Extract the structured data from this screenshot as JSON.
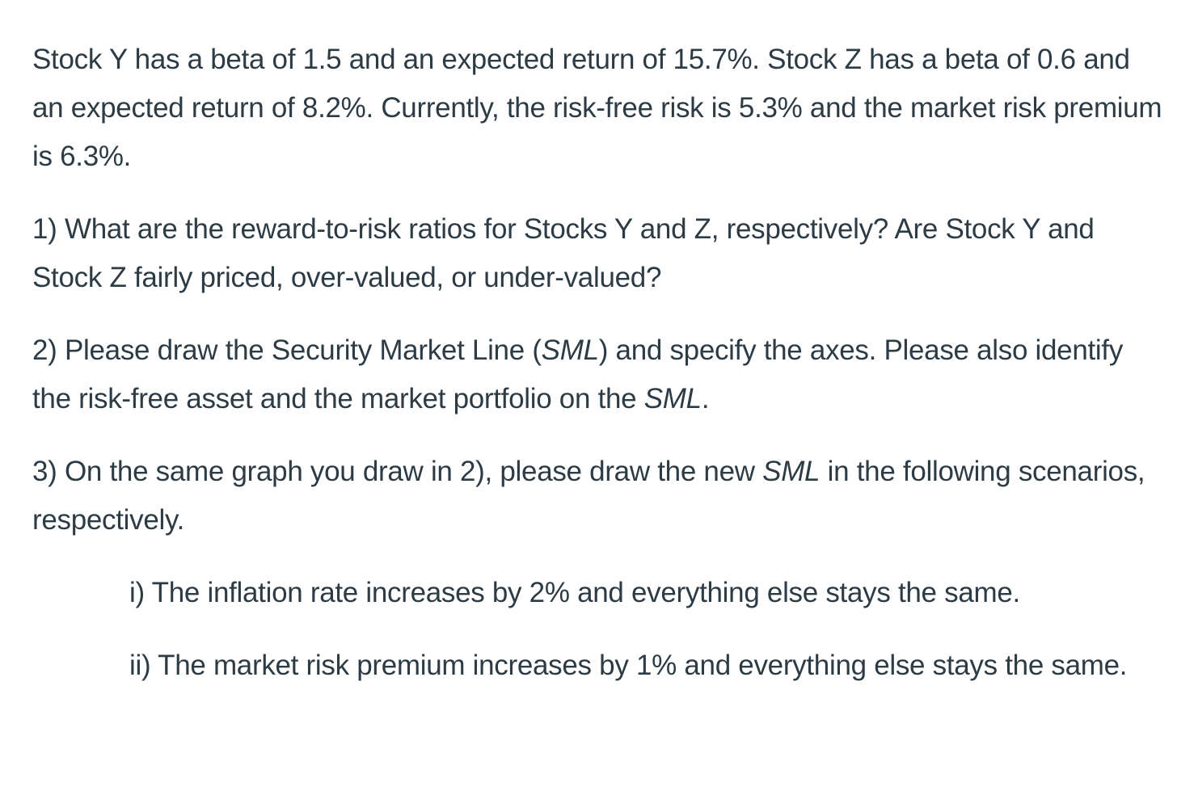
{
  "intro": {
    "text": "Stock Y has a beta of 1.5 and an expected return of 15.7%. Stock Z has a beta of 0.6 and an expected return of 8.2%. Currently, the risk-free risk is 5.3% and the market risk premium is 6.3%."
  },
  "questions": [
    {
      "number": "1)",
      "text": "What are the reward-to-risk ratios for Stocks Y and Z, respectively? Are Stock Y and Stock Z fairly priced, over-valued, or under-valued?"
    },
    {
      "number": "2)",
      "text_before": "Please draw the Security Market Line (",
      "emph1": "SML",
      "text_middle": ") and specify the axes. Please also identify the risk-free asset and the market portfolio on the ",
      "emph2": "SML",
      "text_after": "."
    },
    {
      "number": "3)",
      "text_before": "On the same graph you draw in 2), please draw the new ",
      "emph": "SML",
      "text_after": " in the following scenarios, respectively."
    }
  ],
  "scenarios": [
    {
      "label": "i)",
      "text": "The inflation rate increases by 2% and everything else stays the same."
    },
    {
      "label": "ii)",
      "text": "The market risk premium increases by 1% and everything else stays the same."
    }
  ]
}
